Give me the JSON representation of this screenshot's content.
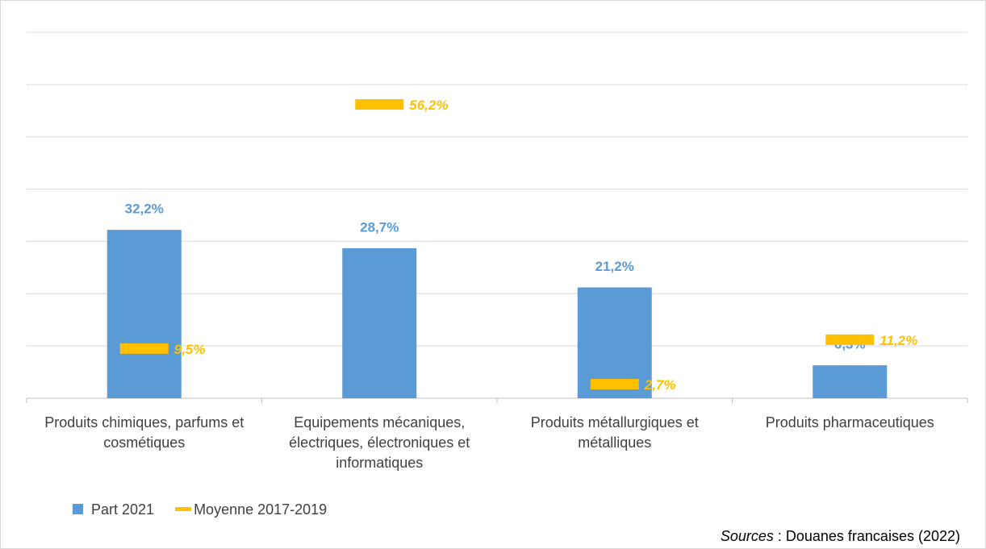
{
  "chart_data": {
    "type": "bar",
    "categories": [
      "Produits chimiques, parfums et cosmétiques",
      "Equipements mécaniques, électriques, électroniques et informatiques",
      "Produits métallurgiques et métalliques",
      "Produits pharmaceutiques"
    ],
    "series": [
      {
        "name": "Part 2021",
        "type": "bar",
        "color": "#5b9bd5",
        "values": [
          32.2,
          28.7,
          21.2,
          6.3
        ],
        "value_labels": [
          "32,2%",
          "28,7%",
          "21,2%",
          "6,3%"
        ]
      },
      {
        "name": "Moyenne 2017-2019",
        "type": "marker",
        "color": "#ffc000",
        "values": [
          9.5,
          56.2,
          2.7,
          11.2
        ],
        "value_labels": [
          "9,5%",
          "56,2%",
          "2,7%",
          "11,2%"
        ]
      }
    ],
    "ylim": [
      0,
      70
    ],
    "yticks": [
      0,
      10,
      20,
      30,
      40,
      50,
      60,
      70
    ],
    "grid": true,
    "source": [
      "Sources",
      " : Douanes francaises (2022)"
    ]
  }
}
